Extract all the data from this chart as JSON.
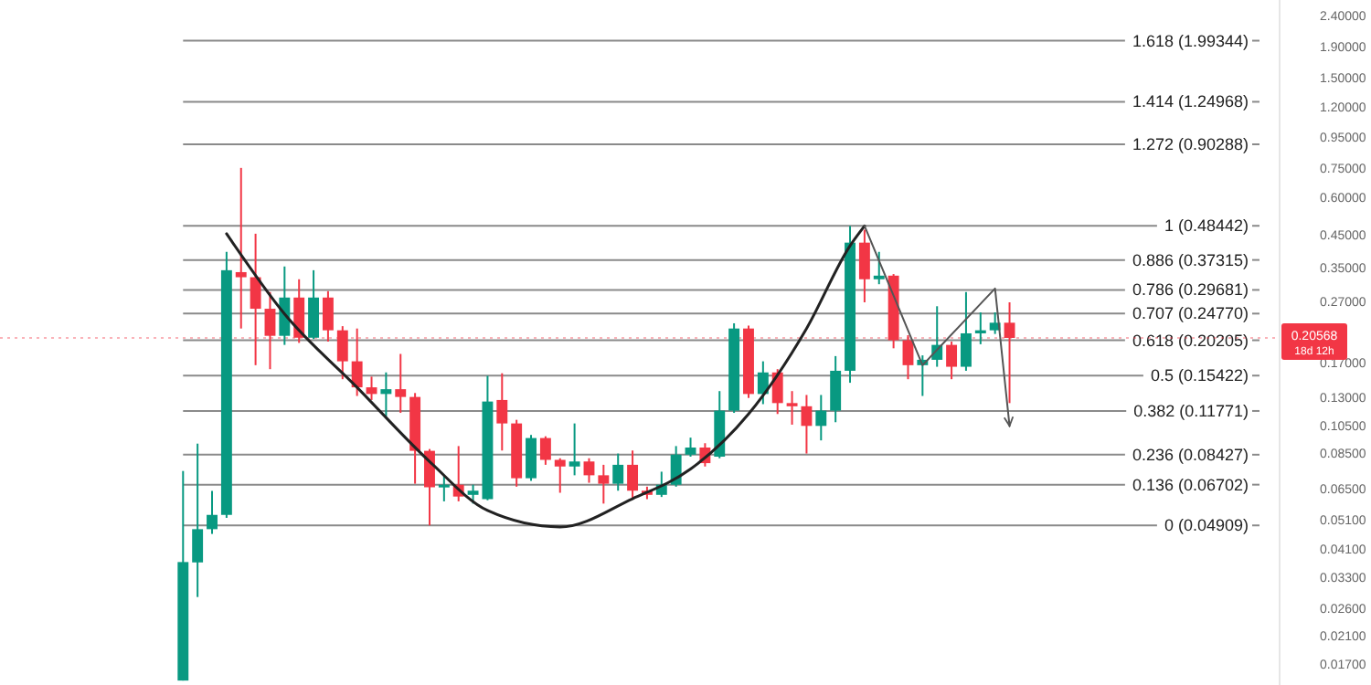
{
  "chart_data": {
    "type": "candlestick",
    "log": "y",
    "tick_labels": "y",
    "categories": [
      null,
      null,
      null,
      null,
      null,
      null,
      null,
      null,
      null,
      null,
      null,
      null,
      null,
      null,
      null,
      null,
      null,
      null,
      null,
      null,
      null,
      null,
      null,
      null,
      null,
      null,
      null,
      null,
      null,
      null,
      null,
      null,
      null,
      null,
      null,
      null,
      null,
      null,
      null,
      null,
      null,
      null,
      null,
      null,
      null,
      null,
      null,
      null,
      null,
      null,
      null,
      null,
      null,
      null,
      null,
      null,
      null,
      null,
      null,
      null,
      null,
      null,
      null,
      null,
      null,
      null,
      null,
      null,
      null,
      null,
      null,
      null,
      null,
      null,
      null,
      null,
      null,
      null,
      null,
      null,
      null,
      null,
      null,
      null,
      null,
      null,
      null,
      null
    ],
    "ohlc": [
      null,
      null,
      null,
      null,
      null,
      null,
      null,
      null,
      null,
      null,
      null,
      null,
      [
        0.015,
        0.0744,
        0.015,
        0.0371
      ],
      [
        0.037,
        0.0917,
        0.0284,
        0.0477
      ],
      [
        0.0477,
        0.0639,
        0.046,
        0.0532
      ],
      [
        0.0532,
        0.397,
        0.052,
        0.345
      ],
      [
        0.34,
        0.754,
        0.221,
        0.327
      ],
      [
        0.327,
        0.456,
        0.167,
        0.257
      ],
      [
        0.257,
        0.292,
        0.162,
        0.209
      ],
      [
        0.209,
        0.355,
        0.195,
        0.28
      ],
      [
        0.28,
        0.322,
        0.198,
        0.206
      ],
      [
        0.206,
        0.345,
        0.204,
        0.28
      ],
      [
        0.28,
        0.294,
        0.2,
        0.218
      ],
      [
        0.218,
        0.225,
        0.15,
        0.172
      ],
      [
        0.172,
        0.221,
        0.132,
        0.141
      ],
      [
        0.141,
        0.153,
        0.128,
        0.134
      ],
      [
        0.134,
        0.158,
        0.113,
        0.139
      ],
      [
        0.139,
        0.182,
        0.116,
        0.131
      ],
      [
        0.131,
        0.135,
        0.0675,
        0.0868
      ],
      [
        0.0868,
        0.088,
        0.04909,
        0.0657
      ],
      [
        0.0657,
        0.072,
        0.059,
        0.067
      ],
      [
        0.067,
        0.09,
        0.059,
        0.0612
      ],
      [
        0.062,
        0.067,
        0.058,
        0.064
      ],
      [
        0.06,
        0.154,
        0.0595,
        0.1265
      ],
      [
        0.128,
        0.157,
        0.087,
        0.107
      ],
      [
        0.107,
        0.11,
        0.066,
        0.0704
      ],
      [
        0.0704,
        0.098,
        0.069,
        0.0957
      ],
      [
        0.0957,
        0.097,
        0.078,
        0.081
      ],
      [
        0.081,
        0.082,
        0.063,
        0.077
      ],
      [
        0.077,
        0.107,
        0.072,
        0.08
      ],
      [
        0.08,
        0.082,
        0.068,
        0.072
      ],
      [
        0.072,
        0.078,
        0.058,
        0.0675
      ],
      [
        0.0675,
        0.085,
        0.064,
        0.078
      ],
      [
        0.078,
        0.087,
        0.06,
        0.064
      ],
      [
        0.064,
        0.066,
        0.06,
        0.062
      ],
      [
        0.062,
        0.074,
        0.061,
        0.067
      ],
      [
        0.067,
        0.09,
        0.066,
        0.0843
      ],
      [
        0.0843,
        0.096,
        0.083,
        0.089
      ],
      [
        0.089,
        0.092,
        0.077,
        0.079
      ],
      [
        0.083,
        0.137,
        0.082,
        0.118
      ],
      [
        0.118,
        0.23,
        0.116,
        0.221
      ],
      [
        0.221,
        0.226,
        0.13,
        0.134
      ],
      [
        0.134,
        0.172,
        0.124,
        0.158
      ],
      [
        0.158,
        0.162,
        0.115,
        0.125
      ],
      [
        0.125,
        0.137,
        0.106,
        0.122
      ],
      [
        0.122,
        0.133,
        0.085,
        0.105
      ],
      [
        0.105,
        0.133,
        0.094,
        0.118
      ],
      [
        0.118,
        0.179,
        0.108,
        0.16
      ],
      [
        0.16,
        0.484,
        0.146,
        0.426
      ],
      [
        0.426,
        0.47,
        0.27,
        0.322
      ],
      [
        0.322,
        0.397,
        0.31,
        0.331
      ],
      [
        0.331,
        0.335,
        0.19,
        0.202
      ],
      [
        0.202,
        0.21,
        0.15,
        0.167
      ],
      [
        0.167,
        0.18,
        0.132,
        0.174
      ],
      [
        0.174,
        0.262,
        0.165,
        0.195
      ],
      [
        0.195,
        0.2,
        0.15,
        0.165
      ],
      [
        0.165,
        0.292,
        0.16,
        0.213
      ],
      [
        0.213,
        0.25,
        0.196,
        0.218
      ],
      [
        0.218,
        0.25,
        0.212,
        0.231
      ],
      [
        0.231,
        0.27,
        0.125,
        0.20568
      ],
      null,
      null,
      null,
      null,
      null,
      null,
      null,
      null,
      null,
      null,
      null,
      null,
      null,
      null,
      null,
      null,
      null,
      null
    ],
    "colors": [
      null,
      null,
      null,
      null,
      null,
      null,
      null,
      null,
      null,
      null,
      null,
      null,
      "#089981",
      "#089981",
      "#089981",
      "#089981",
      "#f23645",
      "#f23645",
      "#f23645",
      "#089981",
      "#f23645",
      "#089981",
      "#f23645",
      "#f23645",
      "#f23645",
      "#f23645",
      "#089981",
      "#f23645",
      "#f23645",
      "#f23645",
      "#089981",
      "#f23645",
      "#089981",
      "#089981",
      "#f23645",
      "#f23645",
      "#089981",
      "#f23645",
      "#f23645",
      "#089981",
      "#f23645",
      "#f23645",
      "#089981",
      "#f23645",
      "#f23645",
      "#089981",
      "#089981",
      "#089981",
      "#f23645",
      "#089981",
      "#089981",
      "#f23645",
      "#089981",
      "#f23645",
      "#f23645",
      "#f23645",
      "#089981",
      "#089981",
      "#089981",
      "#f23645",
      "#089981",
      "#f23645",
      "#f23645",
      "#089981",
      "#089981",
      "#f23645",
      "#089981",
      "#089981",
      "#089981",
      "#f23645",
      null,
      null,
      null,
      null,
      null,
      null,
      null,
      null,
      null,
      null,
      null,
      null,
      null,
      null,
      null,
      null,
      null,
      null
    ],
    "series": [
      {
        "type": "line",
        "color": "#222222",
        "values": [
          null,
          null,
          null,
          null,
          null,
          null,
          null,
          null,
          null,
          null,
          null,
          null,
          null,
          null,
          null,
          0.456,
          null,
          null,
          null,
          0.247,
          null,
          null,
          null,
          null,
          0.141,
          null,
          null,
          null,
          null,
          0.08,
          null,
          null,
          null,
          0.055,
          null,
          null,
          null,
          null,
          0.0485,
          null,
          null,
          null,
          null,
          0.0602,
          null,
          null,
          null,
          0.0755,
          null,
          null,
          null,
          0.115,
          null,
          null,
          null,
          0.221,
          null,
          null,
          0.416,
          0.484,
          null,
          null,
          null,
          null,
          null,
          null,
          null,
          null,
          null,
          null,
          null,
          null,
          null,
          null,
          null,
          null,
          null,
          null,
          null,
          null,
          null,
          null,
          null,
          null,
          null,
          null,
          null,
          null
        ]
      },
      {
        "type": "line",
        "color": "#555555",
        "values": [
          null,
          null,
          null,
          null,
          null,
          null,
          null,
          null,
          null,
          null,
          null,
          null,
          null,
          null,
          null,
          null,
          null,
          null,
          null,
          null,
          null,
          null,
          null,
          null,
          null,
          null,
          null,
          null,
          null,
          null,
          null,
          null,
          null,
          null,
          null,
          null,
          null,
          null,
          null,
          null,
          null,
          null,
          null,
          null,
          null,
          null,
          null,
          null,
          null,
          null,
          null,
          null,
          null,
          null,
          null,
          null,
          null,
          null,
          null,
          0.484,
          null,
          null,
          null,
          0.167,
          null,
          null,
          null,
          null,
          0.3,
          0.105,
          null,
          null,
          null,
          null,
          null,
          null,
          null,
          null,
          null,
          null,
          null,
          null,
          null,
          null,
          null,
          null,
          null,
          null
        ]
      }
    ],
    "ylim": [
      0.0145,
      2.72
    ],
    "yticks": [
      {
        "value": 2.4,
        "label": "2.40000"
      },
      {
        "value": 1.9,
        "label": "1.90000"
      },
      {
        "value": 1.5,
        "label": "1.50000"
      },
      {
        "value": 1.2,
        "label": "1.20000"
      },
      {
        "value": 0.95,
        "label": "0.95000"
      },
      {
        "value": 0.75,
        "label": "0.75000"
      },
      {
        "value": 0.6,
        "label": "0.60000"
      },
      {
        "value": 0.45,
        "label": "0.45000"
      },
      {
        "value": 0.35,
        "label": "0.35000"
      },
      {
        "value": 0.27,
        "label": "0.27000"
      },
      {
        "value": 0.17,
        "label": "0.17000"
      },
      {
        "value": 0.13,
        "label": "0.13000"
      },
      {
        "value": 0.105,
        "label": "0.10500"
      },
      {
        "value": 0.085,
        "label": "0.08500"
      },
      {
        "value": 0.065,
        "label": "0.06500"
      },
      {
        "value": 0.051,
        "label": "0.05100"
      },
      {
        "value": 0.041,
        "label": "0.04100"
      },
      {
        "value": 0.033,
        "label": "0.03300"
      },
      {
        "value": 0.026,
        "label": "0.02600"
      },
      {
        "value": 0.021,
        "label": "0.02100"
      },
      {
        "value": 0.017,
        "label": "0.01700"
      }
    ],
    "ref_lines": [
      {
        "axis": "y",
        "value": 1.99344,
        "label": "1.618 (1.99344)",
        "color": "#8a8a8a"
      },
      {
        "axis": "y",
        "value": 1.24968,
        "label": "1.414 (1.24968)",
        "color": "#8a8a8a"
      },
      {
        "axis": "y",
        "value": 0.90288,
        "label": "1.272 (0.90288)",
        "color": "#8a8a8a"
      },
      {
        "axis": "y",
        "value": 0.48442,
        "label": "1 (0.48442)",
        "color": "#8a8a8a"
      },
      {
        "axis": "y",
        "value": 0.37315,
        "label": "0.886 (0.37315)",
        "color": "#8a8a8a"
      },
      {
        "axis": "y",
        "value": 0.29681,
        "label": "0.786 (0.29681)",
        "color": "#8a8a8a"
      },
      {
        "axis": "y",
        "value": 0.2477,
        "label": "0.707 (0.24770)",
        "color": "#8a8a8a"
      },
      {
        "axis": "y",
        "value": 0.20205,
        "label": "0.618 (0.20205)",
        "color": "#8a8a8a"
      },
      {
        "axis": "y",
        "value": 0.15422,
        "label": "0.5 (0.15422)",
        "color": "#8a8a8a"
      },
      {
        "axis": "y",
        "value": 0.11771,
        "label": "0.382 (0.11771)",
        "color": "#8a8a8a"
      },
      {
        "axis": "y",
        "value": 0.08427,
        "label": "0.236 (0.08427)",
        "color": "#8a8a8a"
      },
      {
        "axis": "y",
        "value": 0.06702,
        "label": "0.136 (0.06702)",
        "color": "#8a8a8a"
      },
      {
        "axis": "y",
        "value": 0.04909,
        "label": "0 (0.04909)",
        "color": "#8a8a8a"
      },
      {
        "axis": "y",
        "value": 0.20568,
        "label": "0.20568",
        "color": "#f23645",
        "line_style": "dotted"
      }
    ],
    "annotations": [
      "18d 12h"
    ]
  }
}
